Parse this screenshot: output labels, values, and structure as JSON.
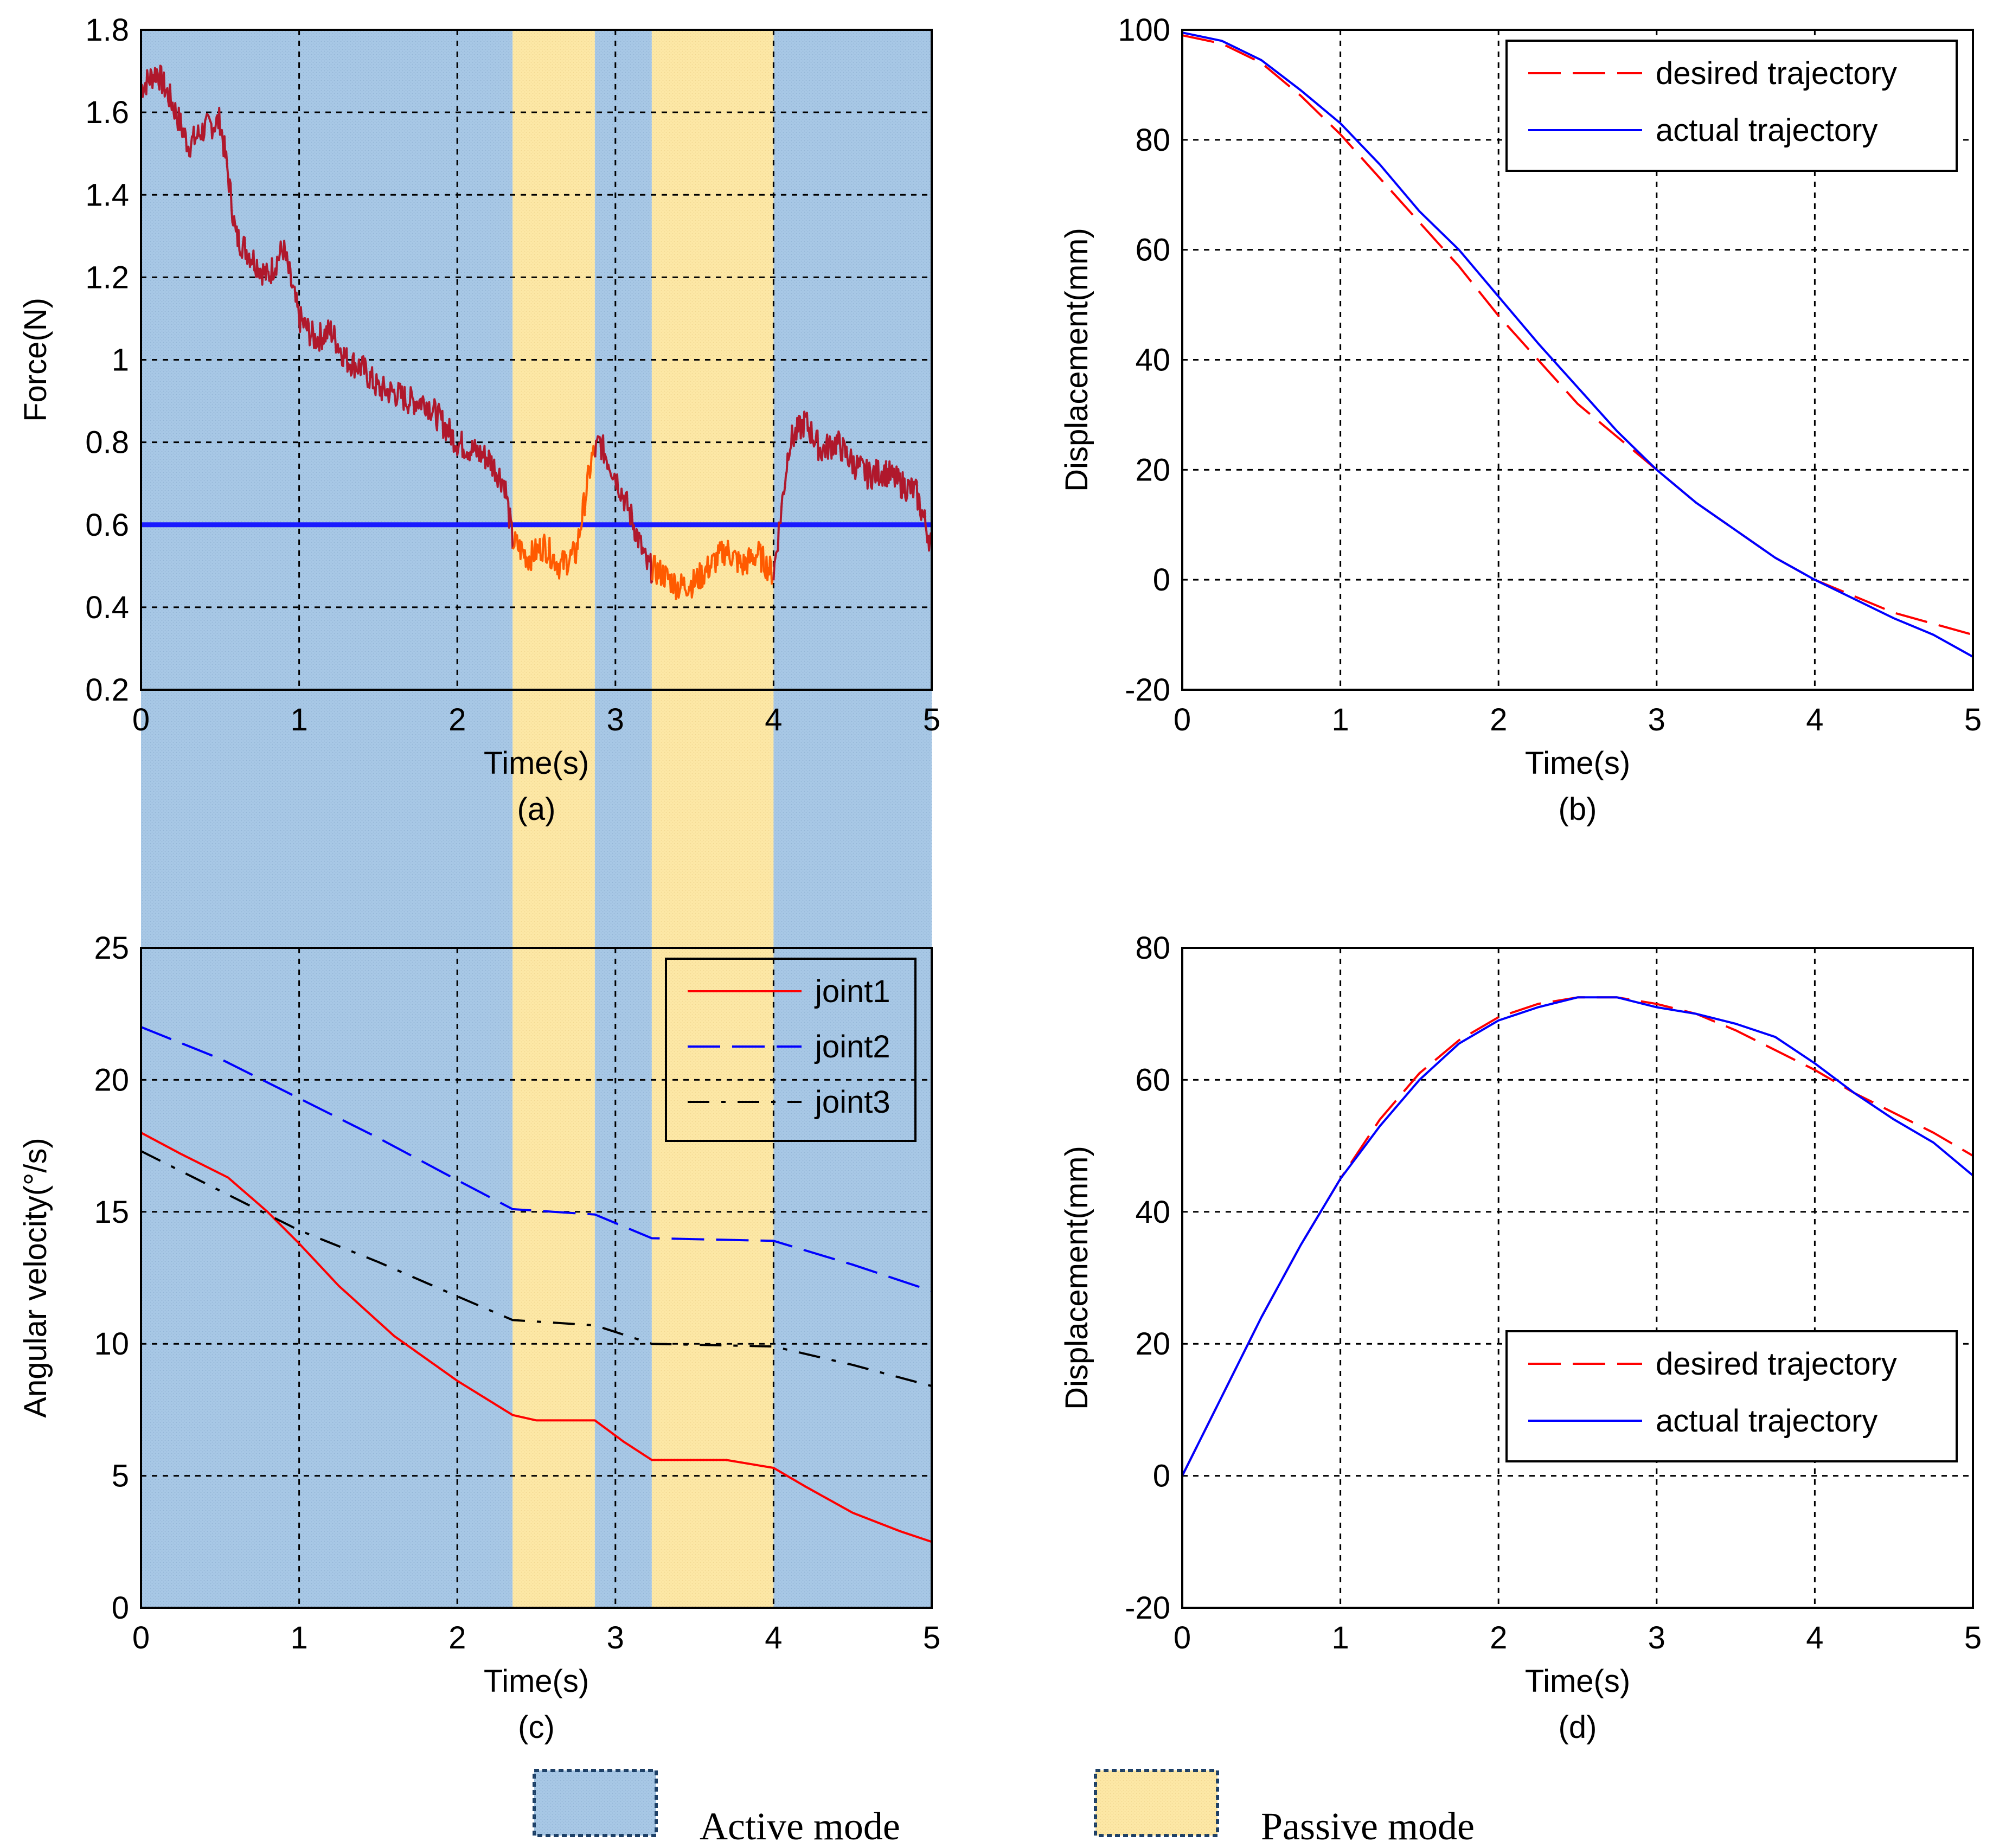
{
  "chart_data": [
    {
      "id": "a",
      "type": "line",
      "caption": "(a)",
      "xlabel": "Time(s)",
      "ylabel": "Force(N)",
      "xlim": [
        0,
        5
      ],
      "ylim": [
        0.2,
        1.8
      ],
      "xticks": [
        0,
        1,
        2,
        3,
        4,
        5
      ],
      "yticks": [
        0.2,
        0.4,
        0.6,
        0.8,
        1,
        1.2,
        1.4,
        1.6,
        1.8
      ],
      "ytick_labels": [
        "0.2",
        "0.4",
        "0.6",
        "0.8",
        "1",
        "1.2",
        "1.4",
        "1.6",
        "1.8"
      ],
      "grid": true,
      "mode_bands": [
        {
          "mode": "active",
          "x": [
            0,
            2.35
          ]
        },
        {
          "mode": "passive",
          "x": [
            2.35,
            2.87
          ]
        },
        {
          "mode": "active",
          "x": [
            2.87,
            3.23
          ]
        },
        {
          "mode": "passive",
          "x": [
            3.23,
            4.0
          ]
        },
        {
          "mode": "active",
          "x": [
            4.0,
            5
          ]
        }
      ],
      "reference_line": {
        "y": 0.6,
        "color": "#1a1aff"
      },
      "series": [
        {
          "color": "#b0182c",
          "passive_color": "#ff5a00",
          "x": [
            0,
            0.1,
            0.2,
            0.3,
            0.4,
            0.5,
            0.55,
            0.6,
            0.7,
            0.8,
            0.9,
            1.0,
            1.1,
            1.2,
            1.3,
            1.4,
            1.5,
            1.6,
            1.7,
            1.8,
            1.9,
            2.0,
            2.1,
            2.2,
            2.3,
            2.35,
            2.45,
            2.55,
            2.65,
            2.75,
            2.85,
            2.9,
            3.0,
            3.1,
            3.2,
            3.3,
            3.4,
            3.5,
            3.6,
            3.7,
            3.8,
            3.9,
            4.0,
            4.1,
            4.2,
            4.3,
            4.4,
            4.5,
            4.6,
            4.7,
            4.8,
            4.9,
            5.0
          ],
          "y": [
            1.66,
            1.7,
            1.62,
            1.52,
            1.56,
            1.58,
            1.45,
            1.3,
            1.25,
            1.2,
            1.27,
            1.1,
            1.05,
            1.07,
            1.0,
            0.98,
            0.93,
            0.92,
            0.9,
            0.9,
            0.85,
            0.8,
            0.78,
            0.76,
            0.7,
            0.56,
            0.52,
            0.55,
            0.5,
            0.53,
            0.76,
            0.8,
            0.72,
            0.62,
            0.5,
            0.48,
            0.45,
            0.46,
            0.5,
            0.54,
            0.5,
            0.53,
            0.48,
            0.8,
            0.85,
            0.78,
            0.8,
            0.75,
            0.72,
            0.73,
            0.7,
            0.68,
            0.55
          ],
          "noise_amplitude": 0.035
        }
      ]
    },
    {
      "id": "b",
      "type": "line",
      "caption": "(b)",
      "xlabel": "Time(s)",
      "ylabel": "Displacement(mm)",
      "xlim": [
        0,
        5
      ],
      "ylim": [
        -20,
        100
      ],
      "xticks": [
        0,
        1,
        2,
        3,
        4,
        5
      ],
      "yticks": [
        -20,
        0,
        20,
        40,
        60,
        80,
        100
      ],
      "grid": true,
      "legend_position": "top-right",
      "series": [
        {
          "name": "desired trajectory",
          "color": "#ff0000",
          "dash": "long-dash",
          "x": [
            0,
            0.25,
            0.5,
            0.75,
            1.0,
            1.25,
            1.5,
            1.75,
            2.0,
            2.25,
            2.5,
            2.75,
            3.0,
            3.25,
            3.5,
            3.75,
            4.0,
            4.25,
            4.5,
            4.75,
            5.0
          ],
          "y": [
            99,
            97.5,
            94,
            88,
            81,
            73,
            65,
            57,
            48,
            40,
            32,
            26,
            20,
            14,
            9,
            4,
            0,
            -3,
            -6,
            -8,
            -10
          ]
        },
        {
          "name": "actual trajectory",
          "color": "#0000ff",
          "dash": "solid",
          "x": [
            0,
            0.25,
            0.5,
            0.75,
            1.0,
            1.25,
            1.5,
            1.75,
            2.0,
            2.25,
            2.5,
            2.75,
            3.0,
            3.25,
            3.5,
            3.75,
            4.0,
            4.25,
            4.5,
            4.75,
            5.0
          ],
          "y": [
            99.5,
            98,
            94.5,
            89,
            83,
            75.5,
            67,
            60,
            51.5,
            43,
            35,
            27,
            20,
            14,
            9,
            4,
            0,
            -3.5,
            -7,
            -10,
            -14
          ]
        }
      ]
    },
    {
      "id": "c",
      "type": "line",
      "caption": "(c)",
      "xlabel": "Time(s)",
      "ylabel": "Angular velocity(°/s)",
      "xlim": [
        0,
        5
      ],
      "ylim": [
        0,
        25
      ],
      "xticks": [
        0,
        1,
        2,
        3,
        4,
        5
      ],
      "yticks": [
        0,
        5,
        10,
        15,
        20,
        25
      ],
      "grid": true,
      "legend_position": "top-right",
      "mode_bands": [
        {
          "mode": "active",
          "x": [
            0,
            2.35
          ]
        },
        {
          "mode": "passive",
          "x": [
            2.35,
            2.87
          ]
        },
        {
          "mode": "active",
          "x": [
            2.87,
            3.23
          ]
        },
        {
          "mode": "passive",
          "x": [
            3.23,
            4.0
          ]
        },
        {
          "mode": "active",
          "x": [
            4.0,
            5
          ]
        }
      ],
      "series": [
        {
          "name": "joint1",
          "color": "#ff0000",
          "dash": "solid",
          "x": [
            0,
            0.25,
            0.55,
            0.8,
            1.0,
            1.25,
            1.6,
            2.0,
            2.35,
            2.5,
            2.87,
            3.05,
            3.23,
            3.7,
            4.0,
            4.2,
            4.5,
            4.8,
            5.0
          ],
          "y": [
            18,
            17.2,
            16.3,
            15,
            13.8,
            12.2,
            10.3,
            8.6,
            7.3,
            7.1,
            7.1,
            6.3,
            5.6,
            5.6,
            5.3,
            4.6,
            3.6,
            2.9,
            2.5
          ]
        },
        {
          "name": "joint2",
          "color": "#0000ff",
          "dash": "long-dash",
          "x": [
            0,
            0.5,
            1.0,
            1.5,
            2.0,
            2.35,
            2.87,
            3.23,
            4.0,
            4.5,
            5.0
          ],
          "y": [
            22,
            20.8,
            19.3,
            17.8,
            16.2,
            15.1,
            14.9,
            14.0,
            13.9,
            13.0,
            12.0
          ]
        },
        {
          "name": "joint3",
          "color": "#000000",
          "dash": "dash-dot",
          "x": [
            0,
            0.5,
            1.0,
            1.5,
            2.0,
            2.35,
            2.87,
            3.23,
            4.0,
            4.5,
            5.0
          ],
          "y": [
            17.3,
            15.8,
            14.3,
            13.1,
            11.8,
            10.9,
            10.7,
            10.0,
            9.9,
            9.2,
            8.4
          ]
        }
      ]
    },
    {
      "id": "d",
      "type": "line",
      "caption": "(d)",
      "xlabel": "Time(s)",
      "ylabel": "Displacement(mm)",
      "xlim": [
        0,
        5
      ],
      "ylim": [
        -20,
        80
      ],
      "xticks": [
        0,
        1,
        2,
        3,
        4,
        5
      ],
      "yticks": [
        -20,
        0,
        20,
        40,
        60,
        80
      ],
      "grid": true,
      "legend_position": "bottom-right",
      "series": [
        {
          "name": "desired trajectory",
          "color": "#ff0000",
          "dash": "long-dash",
          "x": [
            0,
            0.25,
            0.5,
            0.75,
            1.0,
            1.25,
            1.5,
            1.75,
            2.0,
            2.25,
            2.5,
            2.75,
            3.0,
            3.25,
            3.5,
            3.75,
            4.0,
            4.25,
            4.5,
            4.75,
            5.0
          ],
          "y": [
            0,
            12,
            24,
            35,
            45,
            54,
            61,
            66,
            69.5,
            71.5,
            72.5,
            72.5,
            71.5,
            70,
            67.5,
            64.5,
            61.5,
            58,
            55,
            52,
            48.5
          ]
        },
        {
          "name": "actual trajectory",
          "color": "#0000ff",
          "dash": "solid",
          "x": [
            0,
            0.25,
            0.5,
            0.75,
            1.0,
            1.25,
            1.5,
            1.75,
            2.0,
            2.25,
            2.5,
            2.75,
            3.0,
            3.25,
            3.5,
            3.75,
            4.0,
            4.25,
            4.5,
            4.75,
            5.0
          ],
          "y": [
            0,
            12,
            24,
            35,
            45,
            53,
            60,
            65.5,
            69,
            71,
            72.5,
            72.5,
            71,
            70,
            68.5,
            66.5,
            62.5,
            58,
            54,
            50.5,
            45.5
          ]
        }
      ]
    }
  ],
  "mode_legend": {
    "active_label": "Active mode",
    "passive_label": "Passive mode",
    "active_color": "#a8c8e6",
    "passive_color": "#fde8a6"
  }
}
